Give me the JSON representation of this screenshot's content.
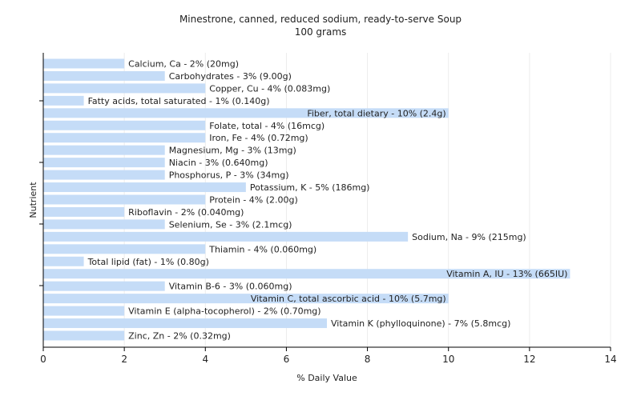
{
  "chart_data": {
    "type": "bar",
    "orientation": "horizontal",
    "title": "Minestrone, canned, reduced sodium, ready-to-serve Soup",
    "subtitle": "100 grams",
    "xlabel": "% Daily Value",
    "ylabel": "Nutrient",
    "xlim": [
      0,
      14
    ],
    "xticks": [
      0,
      2,
      4,
      6,
      8,
      10,
      12,
      14
    ],
    "grid": true,
    "bar_color": "#c5dcf7",
    "categories": [
      "Calcium, Ca",
      "Carbohydrates",
      "Copper, Cu",
      "Fatty acids, total saturated",
      "Fiber, total dietary",
      "Folate, total",
      "Iron, Fe",
      "Magnesium, Mg",
      "Niacin",
      "Phosphorus, P",
      "Potassium, K",
      "Protein",
      "Riboflavin",
      "Selenium, Se",
      "Sodium, Na",
      "Thiamin",
      "Total lipid (fat)",
      "Vitamin A, IU",
      "Vitamin B-6",
      "Vitamin C, total ascorbic acid",
      "Vitamin E (alpha-tocopherol)",
      "Vitamin K (phylloquinone)",
      "Zinc, Zn"
    ],
    "values": [
      2,
      3,
      4,
      1,
      10,
      4,
      4,
      3,
      3,
      3,
      5,
      4,
      2,
      3,
      9,
      4,
      1,
      13,
      3,
      10,
      2,
      7,
      2
    ],
    "labels": [
      "Calcium, Ca - 2% (20mg)",
      "Carbohydrates - 3% (9.00g)",
      "Copper, Cu - 4% (0.083mg)",
      "Fatty acids, total saturated - 1% (0.140g)",
      "Fiber, total dietary - 10% (2.4g)",
      "Folate, total - 4% (16mcg)",
      "Iron, Fe - 4% (0.72mg)",
      "Magnesium, Mg - 3% (13mg)",
      "Niacin - 3% (0.640mg)",
      "Phosphorus, P - 3% (34mg)",
      "Potassium, K - 5% (186mg)",
      "Protein - 4% (2.00g)",
      "Riboflavin - 2% (0.040mg)",
      "Selenium, Se - 3% (2.1mcg)",
      "Sodium, Na - 9% (215mg)",
      "Thiamin - 4% (0.060mg)",
      "Total lipid (fat) - 1% (0.80g)",
      "Vitamin A, IU - 13% (665IU)",
      "Vitamin B-6 - 3% (0.060mg)",
      "Vitamin C, total ascorbic acid - 10% (5.7mg)",
      "Vitamin E (alpha-tocopherol) - 2% (0.70mg)",
      "Vitamin K (phylloquinone) - 7% (5.8mcg)",
      "Zinc, Zn - 2% (0.32mg)"
    ]
  }
}
